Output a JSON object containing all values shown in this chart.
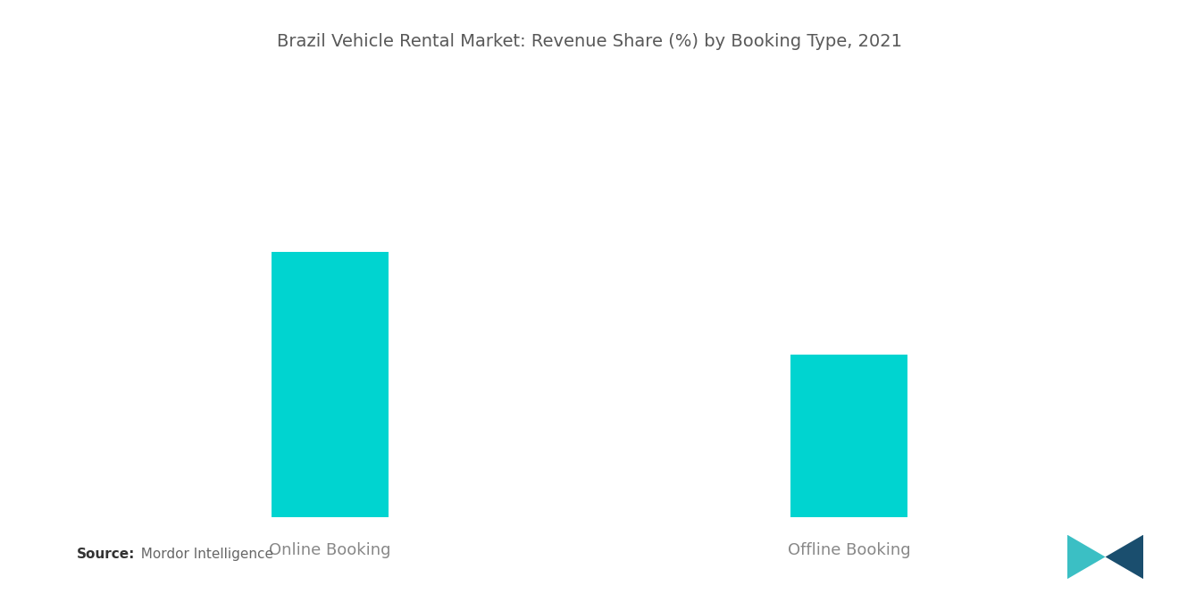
{
  "title": "Brazil Vehicle Rental Market: Revenue Share (%) by Booking Type, 2021",
  "categories": [
    "Online Booking",
    "Offline Booking"
  ],
  "values": [
    62,
    38
  ],
  "bar_color": "#00D4D0",
  "background_color": "#ffffff",
  "title_color": "#595959",
  "label_color": "#888888",
  "title_fontsize": 14,
  "label_fontsize": 13,
  "source_bold": "Source:",
  "source_text": "  Mordor Intelligence",
  "ylim": [
    0,
    100
  ],
  "bar_width": 0.45,
  "x_positions": [
    1,
    3
  ]
}
